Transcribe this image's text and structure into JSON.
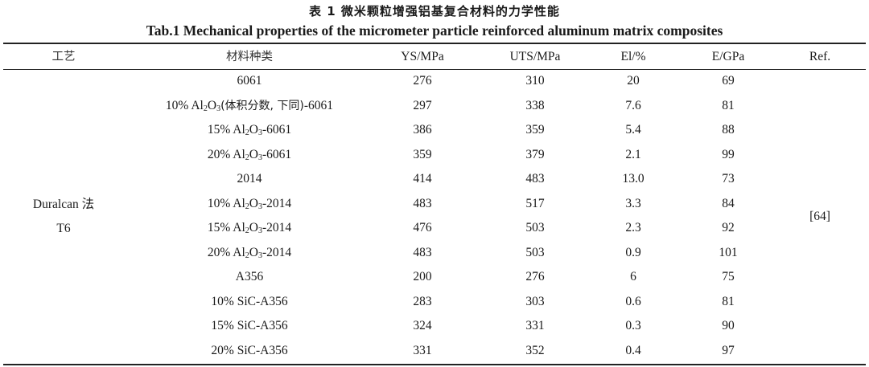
{
  "title_cn": "表 1 微米颗粒增强铝基复合材料的力学性能",
  "title_en": "Tab.1 Mechanical properties of the micrometer particle reinforced aluminum matrix composites",
  "headers": {
    "craft": "工艺",
    "material": "材料种类",
    "ys": "YS/MPa",
    "uts": "UTS/MPa",
    "el": "El/%",
    "e": "E/GPa",
    "ref": "Ref."
  },
  "craft": {
    "line1": "Duralcan 法",
    "line2": "T6"
  },
  "ref_value": "[64]",
  "rows": [
    {
      "material": "6061",
      "ys": "276",
      "uts": "310",
      "el": "20",
      "e": "69"
    },
    {
      "material_pre": "10% Al",
      "material_sub1": "2",
      "material_mid": "O",
      "material_sub2": "3",
      "material_note": "(体积分数, 下同)",
      "material_post": "-6061",
      "ys": "297",
      "uts": "338",
      "el": "7.6",
      "e": "81"
    },
    {
      "material_pre": "15% Al",
      "material_sub1": "2",
      "material_mid": "O",
      "material_sub2": "3",
      "material_post": "-6061",
      "ys": "386",
      "uts": "359",
      "el": "5.4",
      "e": "88"
    },
    {
      "material_pre": "20% Al",
      "material_sub1": "2",
      "material_mid": "O",
      "material_sub2": "3",
      "material_post": "-6061",
      "ys": "359",
      "uts": "379",
      "el": "2.1",
      "e": "99"
    },
    {
      "material": "2014",
      "ys": "414",
      "uts": "483",
      "el": "13.0",
      "e": "73"
    },
    {
      "material_pre": "10% Al",
      "material_sub1": "2",
      "material_mid": "O",
      "material_sub2": "3",
      "material_post": "-2014",
      "ys": "483",
      "uts": "517",
      "el": "3.3",
      "e": "84"
    },
    {
      "material_pre": "15% Al",
      "material_sub1": "2",
      "material_mid": "O",
      "material_sub2": "3",
      "material_post": "-2014",
      "ys": "476",
      "uts": "503",
      "el": "2.3",
      "e": "92"
    },
    {
      "material_pre": "20% Al",
      "material_sub1": "2",
      "material_mid": "O",
      "material_sub2": "3",
      "material_post": "-2014",
      "ys": "483",
      "uts": "503",
      "el": "0.9",
      "e": "101"
    },
    {
      "material": "A356",
      "ys": "200",
      "uts": "276",
      "el": "6",
      "e": "75"
    },
    {
      "material": "10% SiC-A356",
      "ys": "283",
      "uts": "303",
      "el": "0.6",
      "e": "81"
    },
    {
      "material": "15% SiC-A356",
      "ys": "324",
      "uts": "331",
      "el": "0.3",
      "e": "90"
    },
    {
      "material": "20% SiC-A356",
      "ys": "331",
      "uts": "352",
      "el": "0.4",
      "e": "97"
    }
  ]
}
